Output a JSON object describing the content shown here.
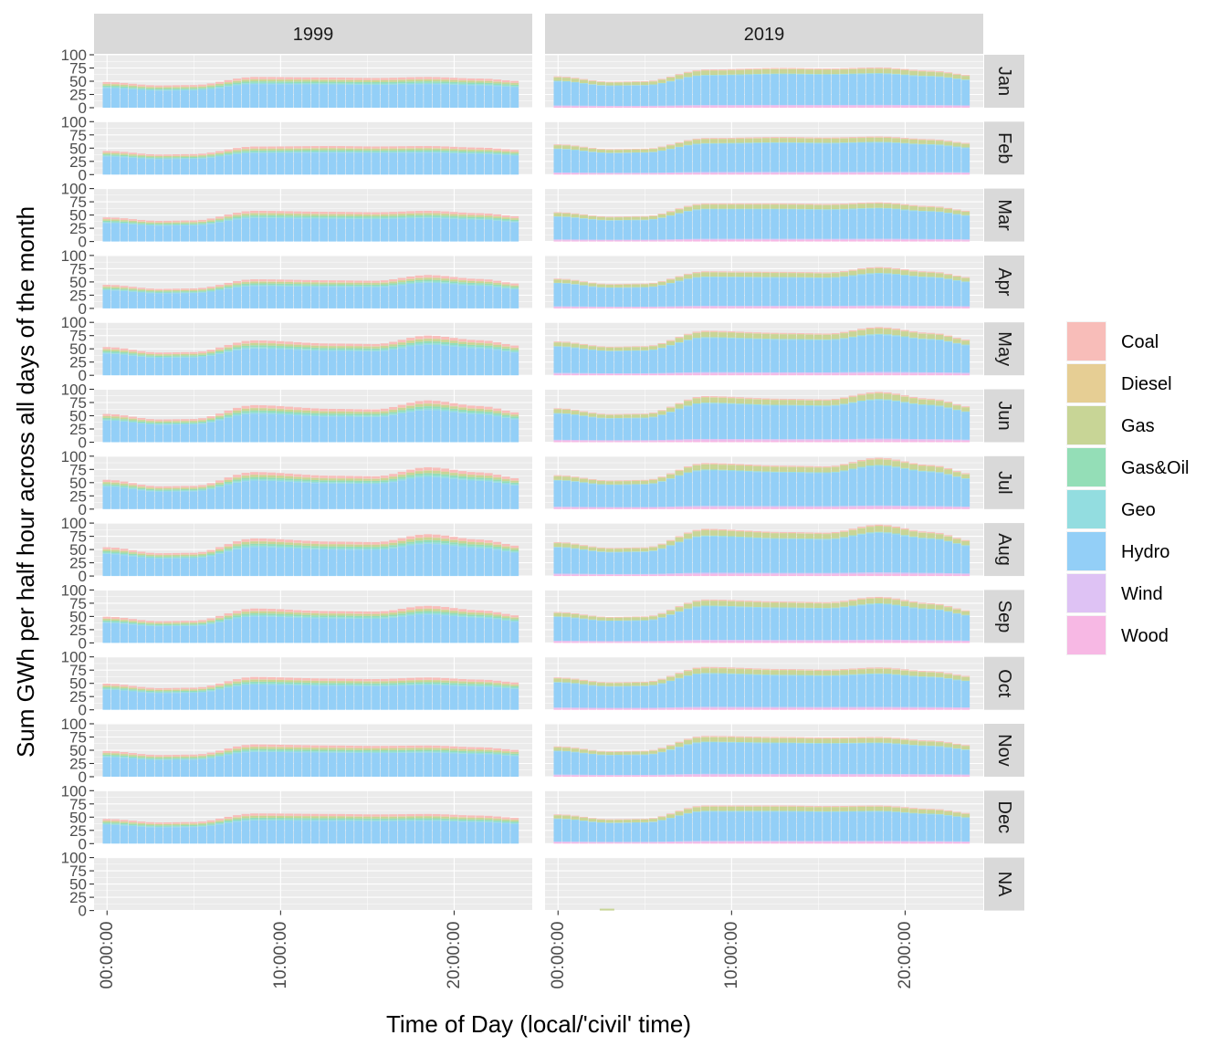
{
  "chart_data": {
    "type": "bar",
    "stacked": true,
    "xlabel": "Time of Day (local/'civil' time)",
    "ylabel": "Sum GWh per half hour across all days of the month",
    "columns": [
      "1999",
      "2019"
    ],
    "rows": [
      "Jan",
      "Feb",
      "Mar",
      "Apr",
      "May",
      "Jun",
      "Jul",
      "Aug",
      "Sep",
      "Oct",
      "Nov",
      "Dec",
      "NA"
    ],
    "x_ticks": [
      "00:00:00",
      "10:00:00",
      "20:00:00"
    ],
    "y_ticks": [
      "0",
      "25",
      "50",
      "75",
      "100"
    ],
    "ylim": [
      0,
      100
    ],
    "x_range_hours": [
      -0.75,
      24.5
    ],
    "half_hour_slots": 48,
    "legend_position": "right",
    "legend": [
      {
        "name": "Coal",
        "color": "#F8BDB9"
      },
      {
        "name": "Diesel",
        "color": "#E6CE94"
      },
      {
        "name": "Gas",
        "color": "#C8D596"
      },
      {
        "name": "Gas&Oil",
        "color": "#94DEB7"
      },
      {
        "name": "Geo",
        "color": "#93DDE0"
      },
      {
        "name": "Hydro",
        "color": "#93CFF7"
      },
      {
        "name": "Wind",
        "color": "#DEC2F4"
      },
      {
        "name": "Wood",
        "color": "#F7B8E4"
      }
    ],
    "approx_daily_profile_totals": {
      "1999": {
        "Jan": {
          "night": 42,
          "morning_peak": 58,
          "day": 57,
          "evening_peak": 58,
          "late": 50
        },
        "Feb": {
          "night": 38,
          "morning_peak": 53,
          "day": 54,
          "evening_peak": 54,
          "late": 46
        },
        "Mar": {
          "night": 39,
          "morning_peak": 58,
          "day": 56,
          "evening_peak": 58,
          "late": 47
        },
        "Apr": {
          "night": 37,
          "morning_peak": 55,
          "day": 53,
          "evening_peak": 63,
          "late": 46
        },
        "May": {
          "night": 43,
          "morning_peak": 66,
          "day": 60,
          "evening_peak": 75,
          "late": 55
        },
        "Jun": {
          "night": 43,
          "morning_peak": 70,
          "day": 63,
          "evening_peak": 79,
          "late": 55
        },
        "Jul": {
          "night": 43,
          "morning_peak": 70,
          "day": 63,
          "evening_peak": 79,
          "late": 57
        },
        "Aug": {
          "night": 43,
          "morning_peak": 71,
          "day": 65,
          "evening_peak": 79,
          "late": 56
        },
        "Sep": {
          "night": 41,
          "morning_peak": 65,
          "day": 60,
          "evening_peak": 70,
          "late": 51
        },
        "Oct": {
          "night": 41,
          "morning_peak": 62,
          "day": 59,
          "evening_peak": 61,
          "late": 51
        },
        "Nov": {
          "night": 41,
          "morning_peak": 61,
          "day": 59,
          "evening_peak": 59,
          "late": 50
        },
        "Dec": {
          "night": 40,
          "morning_peak": 57,
          "day": 56,
          "evening_peak": 56,
          "late": 48
        },
        "NA": {
          "night": 0,
          "morning_peak": 0,
          "day": 0,
          "evening_peak": 0,
          "late": 0
        }
      },
      "2019": {
        "Jan": {
          "night": 49,
          "morning_peak": 72,
          "day": 75,
          "evening_peak": 76,
          "late": 61
        },
        "Feb": {
          "night": 48,
          "morning_peak": 69,
          "day": 71,
          "evening_peak": 72,
          "late": 59
        },
        "Mar": {
          "night": 47,
          "morning_peak": 72,
          "day": 72,
          "evening_peak": 74,
          "late": 57
        },
        "Apr": {
          "night": 46,
          "morning_peak": 70,
          "day": 69,
          "evening_peak": 78,
          "late": 58
        },
        "May": {
          "night": 54,
          "morning_peak": 84,
          "day": 80,
          "evening_peak": 91,
          "late": 66
        },
        "Jun": {
          "night": 53,
          "morning_peak": 87,
          "day": 82,
          "evening_peak": 95,
          "late": 66
        },
        "Jul": {
          "night": 54,
          "morning_peak": 87,
          "day": 82,
          "evening_peak": 97,
          "late": 66
        },
        "Aug": {
          "night": 53,
          "morning_peak": 89,
          "day": 83,
          "evening_peak": 97,
          "late": 66
        },
        "Sep": {
          "night": 49,
          "morning_peak": 82,
          "day": 78,
          "evening_peak": 87,
          "late": 60
        },
        "Oct": {
          "night": 52,
          "morning_peak": 81,
          "day": 77,
          "evening_peak": 80,
          "late": 63
        },
        "Nov": {
          "night": 48,
          "morning_peak": 77,
          "day": 75,
          "evening_peak": 75,
          "late": 59
        },
        "Dec": {
          "night": 46,
          "morning_peak": 72,
          "day": 72,
          "evening_peak": 72,
          "late": 57
        },
        "NA": {
          "night": 0,
          "morning_peak": 0,
          "day": 0,
          "evening_peak": 0,
          "late": 0
        }
      }
    },
    "approx_fuel_share_of_total": {
      "1999": {
        "Coal": 0.07,
        "Diesel": 0.01,
        "Gas": 0.06,
        "Gas&Oil": 0.05,
        "Geo": 0.04,
        "Hydro": 0.77,
        "Wind": 0.0,
        "Wood": 0.0
      },
      "2019": {
        "Coal": 0.02,
        "Diesel": 0.01,
        "Gas": 0.11,
        "Gas&Oil": 0.0,
        "Geo": 0.02,
        "Hydro": 0.77,
        "Wind": 0.03,
        "Wood": 0.04
      }
    }
  }
}
